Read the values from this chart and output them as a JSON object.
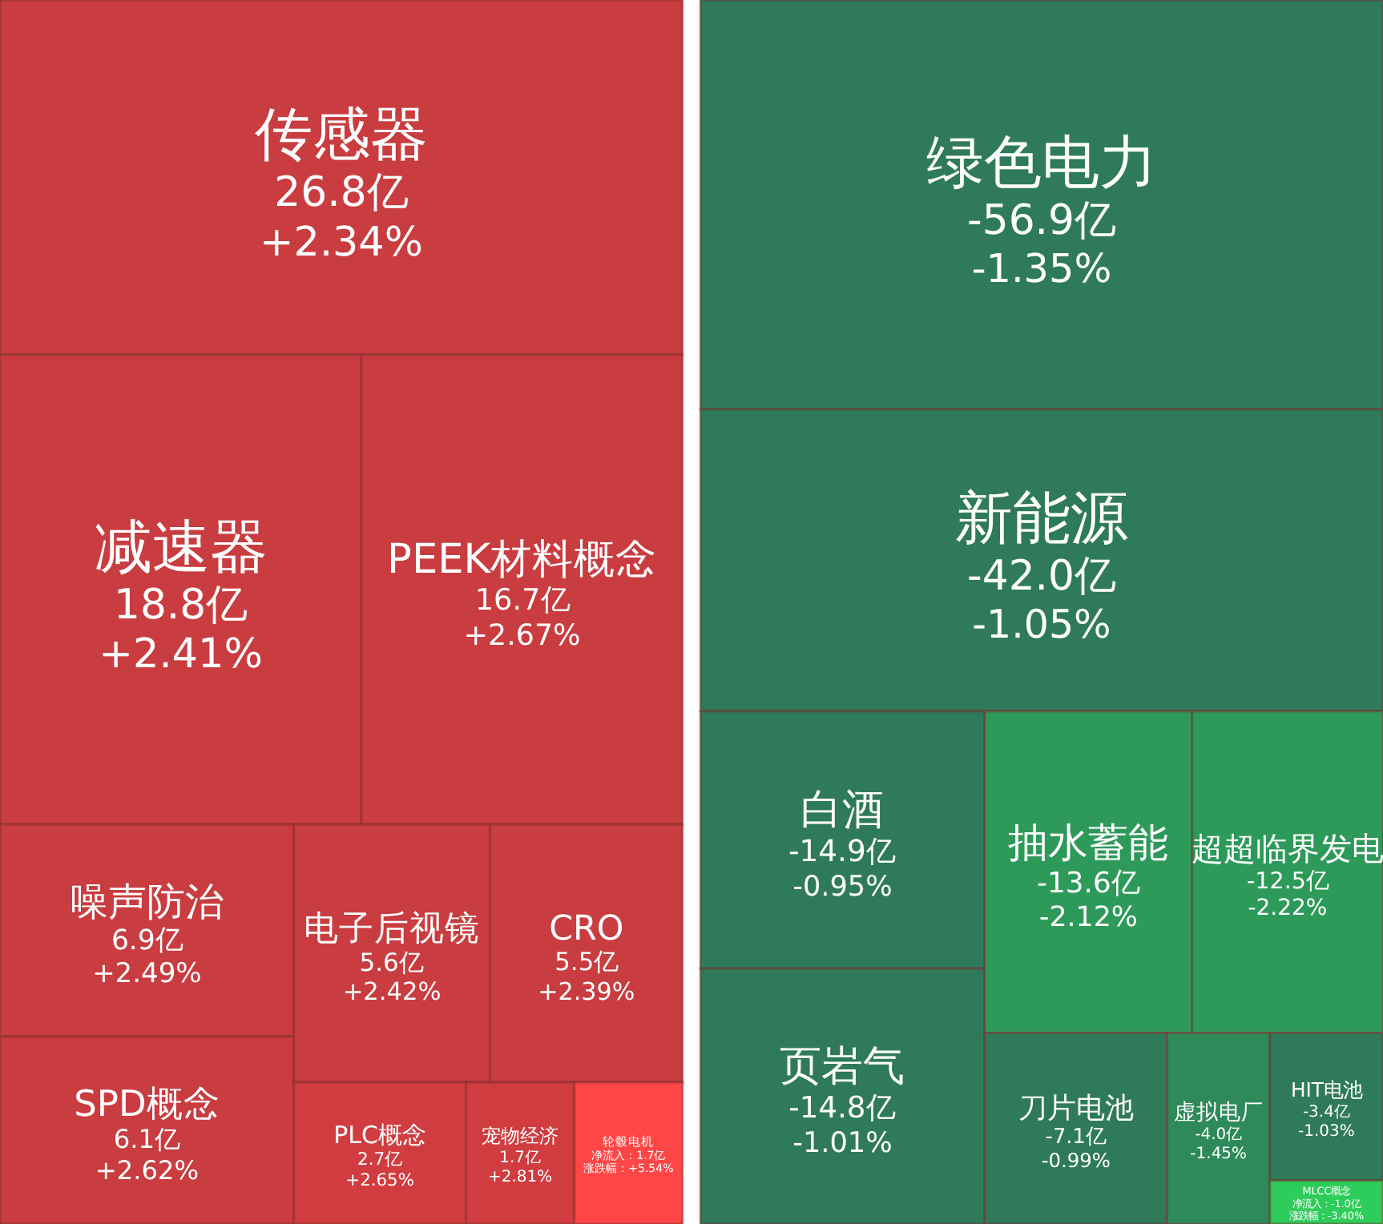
{
  "chart_data": [
    {
      "type": "other",
      "categories": [
        "传感器",
        "减速器",
        "PEEK材料概念",
        "噪声防治",
        "SPD概念",
        "电子后视镜",
        "CRO",
        "PLC概念",
        "宠物经济",
        "轮毂电机"
      ],
      "series": [
        {
          "colors": [
            "#c93c40",
            "#c93c40",
            "#c93c40",
            "#c93c40",
            "#c93c40",
            "#c93c40",
            "#c93c40",
            "#d03c40",
            "#d03c40",
            "#ff4646"
          ],
          "values": [
            26.8,
            18.8,
            16.7,
            6.9,
            6.1,
            5.6,
            5.5,
            2.7,
            1.7,
            1.7
          ],
          "value_labels": [
            "26.8亿",
            "18.8亿",
            "16.7亿",
            "6.9亿",
            "6.1亿",
            "5.6亿",
            "5.5亿",
            "2.7亿",
            "1.7亿",
            "净流入：1.7亿"
          ]
        },
        {
          "values": [
            2.34,
            2.41,
            2.67,
            2.49,
            2.62,
            2.42,
            2.39,
            2.65,
            2.81,
            5.54
          ],
          "value_labels": [
            "+2.34%",
            "+2.41%",
            "+2.67%",
            "+2.49%",
            "+2.62%",
            "+2.42%",
            "+2.39%",
            "+2.65%",
            "+2.81%",
            "涨跌幅：+5.54%"
          ]
        }
      ]
    },
    {
      "type": "other",
      "categories": [
        "绿色电力",
        "新能源",
        "白酒",
        "页岩气",
        "抽水蓄能",
        "超超临界发电",
        "刀片电池",
        "虚拟电厂",
        "HIT电池",
        "MLCC概念"
      ],
      "series": [
        {
          "colors": [
            "#2f7a5a",
            "#2f7a5a",
            "#2f7a5a",
            "#2f7a5a",
            "#2e9a5a",
            "#2e9a5a",
            "#2f7a5a",
            "#2f8a5a",
            "#2f7a5a",
            "#2ecc5a"
          ],
          "values": [
            -56.9,
            -42.0,
            -14.9,
            -14.8,
            -13.6,
            -12.5,
            -7.1,
            -4.0,
            -3.4,
            -1.0
          ],
          "value_labels": [
            "-56.9亿",
            "-42.0亿",
            "-14.9亿",
            "-14.8亿",
            "-13.6亿",
            "-12.5亿",
            "-7.1亿",
            "-4.0亿",
            "-3.4亿",
            "净流入：-1.0亿"
          ]
        },
        {
          "values": [
            -1.35,
            -1.05,
            -0.95,
            -1.01,
            -2.12,
            -2.22,
            -0.99,
            -1.45,
            -1.03,
            -3.4
          ],
          "value_labels": [
            "-1.35%",
            "-1.05%",
            "-0.95%",
            "-1.01%",
            "-2.12%",
            "-2.22%",
            "-0.99%",
            "-1.45%",
            "-1.03%",
            "涨跌幅：-3.40%"
          ]
        }
      ]
    }
  ]
}
